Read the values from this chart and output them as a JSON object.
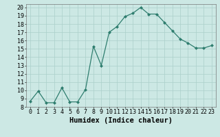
{
  "x": [
    0,
    1,
    2,
    3,
    4,
    5,
    6,
    7,
    8,
    9,
    10,
    11,
    12,
    13,
    14,
    15,
    16,
    17,
    18,
    19,
    20,
    21,
    22,
    23
  ],
  "y": [
    8.7,
    9.9,
    8.5,
    8.5,
    10.3,
    8.6,
    8.6,
    10.1,
    15.3,
    13.0,
    17.0,
    17.7,
    18.9,
    19.3,
    20.0,
    19.2,
    19.2,
    18.2,
    17.2,
    16.2,
    15.7,
    15.1,
    15.1,
    15.4
  ],
  "xlabel": "Humidex (Indice chaleur)",
  "xlim": [
    -0.5,
    23.5
  ],
  "ylim": [
    8,
    20.4
  ],
  "yticks": [
    8,
    9,
    10,
    11,
    12,
    13,
    14,
    15,
    16,
    17,
    18,
    19,
    20
  ],
  "xtick_labels": [
    "0",
    "1",
    "2",
    "3",
    "4",
    "5",
    "6",
    "7",
    "8",
    "9",
    "10",
    "11",
    "12",
    "13",
    "14",
    "15",
    "16",
    "17",
    "18",
    "19",
    "20",
    "21",
    "22",
    "23"
  ],
  "line_color": "#2e7d6e",
  "marker_color": "#2e7d6e",
  "bg_color": "#cce8e4",
  "grid_color": "#aacfca",
  "xlabel_fontsize": 7.5,
  "tick_fontsize": 6.0,
  "marker_size": 2.0,
  "line_width": 0.9
}
